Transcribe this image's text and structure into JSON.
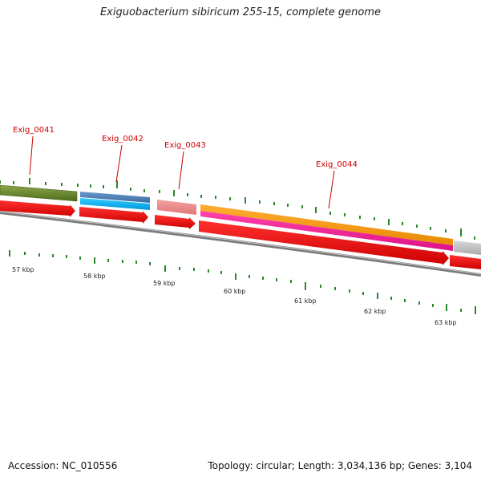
{
  "header": {
    "title": "Exiguobacterium sibiricum 255-15, complete genome"
  },
  "genes": [
    {
      "name": "Exig_0041"
    },
    {
      "name": "Exig_0042"
    },
    {
      "name": "Exig_0043"
    },
    {
      "name": "Exig_0044"
    }
  ],
  "kbp_labels": [
    "57 kbp",
    "58 kbp",
    "59 kbp",
    "60 kbp",
    "61 kbp",
    "62 kbp",
    "63 kbp"
  ],
  "footer": {
    "accession": "Accession: NC_010556",
    "summary": "Topology: circular; Length: 3,034,136 bp; Genes: 3,104"
  },
  "colors": {
    "gene_label": "#cc0000",
    "tick": "#2a8a2a",
    "cds": "#ee1111",
    "backbone": "#888888"
  }
}
